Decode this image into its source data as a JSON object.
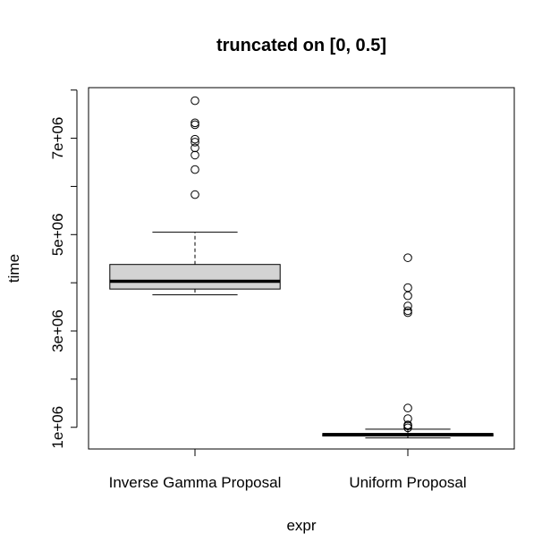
{
  "chart_data": {
    "type": "box",
    "title": "truncated on [0, 0.5]",
    "xlabel": "expr",
    "ylabel": "time",
    "ylim": [
      550000,
      8050000
    ],
    "y_ticks": [
      1000000,
      2000000,
      3000000,
      4000000,
      5000000,
      6000000,
      7000000,
      8000000
    ],
    "y_tick_labels": [
      "1e+06",
      "",
      "3e+06",
      "",
      "5e+06",
      "",
      "7e+06",
      ""
    ],
    "grid": false,
    "categories": [
      "Inverse Gamma Proposal",
      "Uniform Proposal"
    ],
    "boxes": [
      {
        "name": "Inverse Gamma Proposal",
        "whisker_low": 3750000,
        "q1": 3870000,
        "median": 4030000,
        "q3": 4380000,
        "whisker_high": 5050000,
        "outliers": [
          5830000,
          6350000,
          6650000,
          6800000,
          6920000,
          6980000,
          7280000,
          7320000,
          7780000
        ]
      },
      {
        "name": "Uniform Proposal",
        "whisker_low": 780000,
        "q1": 820000,
        "median": 850000,
        "q3": 870000,
        "whisker_high": 960000,
        "outliers": [
          990000,
          1030000,
          1050000,
          1180000,
          1400000,
          3380000,
          3420000,
          3520000,
          3730000,
          3900000,
          4520000
        ]
      }
    ],
    "colors": {
      "box_fill": "#d3d3d3",
      "stroke": "#000000"
    }
  }
}
